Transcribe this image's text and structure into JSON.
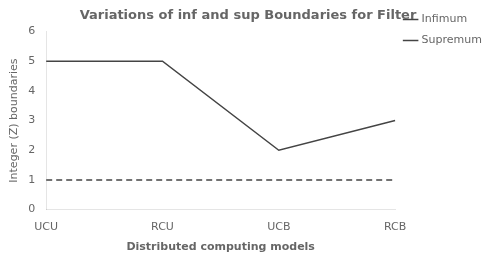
{
  "chart_data": {
    "type": "line",
    "title": "Variations of inf and sup Boundaries for Filter",
    "xlabel": "Distributed computing models",
    "ylabel": "Integer (Z) boundaries",
    "categories": [
      "UCU",
      "RCU",
      "UCB",
      "RCB"
    ],
    "series": [
      {
        "name": "Infimum",
        "color": "#444444",
        "line_style": "dashed",
        "values": [
          1,
          1,
          1,
          1
        ]
      },
      {
        "name": "Supremum",
        "color": "#444444",
        "line_style": "solid",
        "values": [
          5,
          5,
          2,
          3
        ]
      }
    ],
    "ylim": [
      0,
      6
    ],
    "yticks": [
      0,
      1,
      2,
      3,
      4,
      5,
      6
    ],
    "grid": false,
    "legend": "right"
  }
}
